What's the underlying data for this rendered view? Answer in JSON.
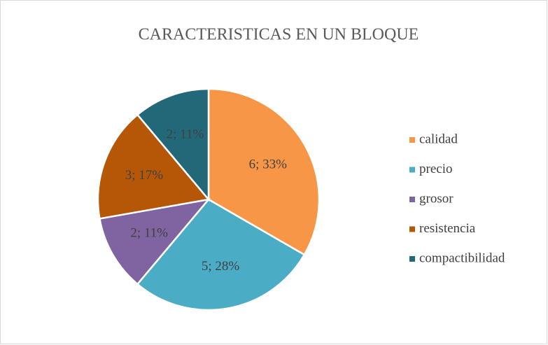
{
  "chart_data": {
    "type": "pie",
    "title": "CARACTERISTICAS EN UN BLOQUE",
    "categories": [
      "calidad",
      "precio",
      "grosor",
      "resistencia",
      "compactibilidad"
    ],
    "values": [
      6,
      5,
      2,
      3,
      2
    ],
    "value_labels": [
      "6; 33%",
      "5; 28%",
      "2; 11%",
      "3; 17%",
      "2; 11%"
    ],
    "colors": [
      "#f79646",
      "#4bacc6",
      "#8064a2",
      "#b65708",
      "#236878"
    ],
    "legend": "right"
  }
}
